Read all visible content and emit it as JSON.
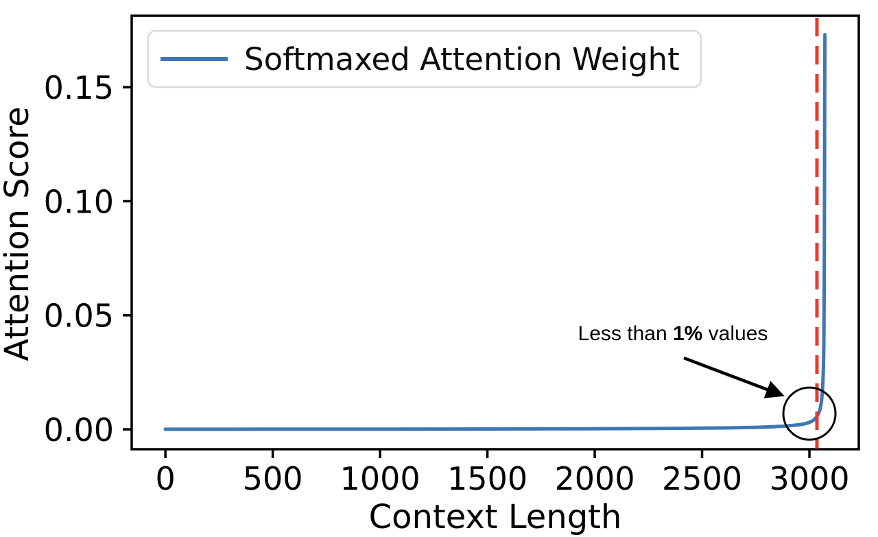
{
  "chart_data": {
    "type": "line",
    "title": "",
    "xlabel": "Context Length",
    "ylabel": "Attention Score",
    "xlim": [
      -157,
      3230
    ],
    "ylim": [
      -0.0087,
      0.1813
    ],
    "grid": false,
    "xticks": {
      "values": [
        0,
        500,
        1000,
        1500,
        2000,
        2500,
        3000
      ],
      "labels": [
        "0",
        "500",
        "1000",
        "1500",
        "2000",
        "2500",
        "3000"
      ]
    },
    "yticks": {
      "values": [
        0.0,
        0.05,
        0.1,
        0.15
      ],
      "labels": [
        "0.00",
        "0.05",
        "0.10",
        "0.15"
      ]
    },
    "legend": {
      "position": "upper left",
      "entries": [
        {
          "label": "Softmaxed Attention Weight",
          "color": "#3F76B4"
        }
      ]
    },
    "series": [
      {
        "name": "Softmaxed Attention Weight",
        "color": "#3F76B4",
        "line_width": 5,
        "x": [
          0,
          150,
          300,
          450,
          600,
          750,
          900,
          1050,
          1200,
          1350,
          1500,
          1650,
          1800,
          1950,
          2100,
          2250,
          2400,
          2550,
          2650,
          2750,
          2820,
          2880,
          2920,
          2950,
          2975,
          2995,
          3010,
          3022,
          3032,
          3040,
          3047,
          3052,
          3056,
          3060,
          3063,
          3065,
          3067,
          3068,
          3069,
          3070,
          3071,
          3072
        ],
        "y": [
          4e-05,
          5e-05,
          6e-05,
          7e-05,
          8e-05,
          9e-05,
          0.0001,
          0.00012,
          0.00013,
          0.00015,
          0.00017,
          0.0002,
          0.00023,
          0.00027,
          0.00032,
          0.00038,
          0.00047,
          0.0006,
          0.00072,
          0.0009,
          0.0011,
          0.0014,
          0.0017,
          0.002,
          0.0024,
          0.0029,
          0.0035,
          0.0042,
          0.0052,
          0.0065,
          0.008,
          0.0098,
          0.012,
          0.016,
          0.021,
          0.027,
          0.036,
          0.048,
          0.065,
          0.09,
          0.13,
          0.173
        ]
      }
    ],
    "vline": {
      "x": 3035,
      "color": "#E8382C",
      "style": "dashed",
      "dash": [
        27,
        14
      ],
      "line_width": 5
    },
    "annotation": {
      "text_prefix": "Less than ",
      "text_bold": "1%",
      "text_suffix": " values",
      "text_xy": [
        2364,
        0.0391
      ],
      "arrow_start": [
        2415,
        0.0313
      ],
      "arrow_end": [
        2872,
        0.015
      ],
      "circle_center": [
        3000,
        0.0069
      ],
      "circle_radius_px": 38,
      "color": "#000000"
    },
    "colors": {
      "axis": "#000000",
      "legend_border": "#d9d9d9",
      "background": "#ffffff"
    }
  }
}
